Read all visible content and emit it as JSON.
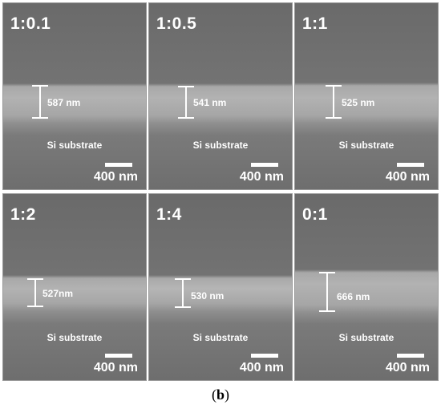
{
  "panels": [
    {
      "ratio": "1:0.1",
      "thickness": "587 nm",
      "substrate": "Si substrate",
      "scale": "400 nm"
    },
    {
      "ratio": "1:0.5",
      "thickness": "541 nm",
      "substrate": "Si substrate",
      "scale": "400 nm"
    },
    {
      "ratio": "1:1",
      "thickness": "525 nm",
      "substrate": "Si substrate",
      "scale": "400 nm"
    },
    {
      "ratio": "1:2",
      "thickness": "527nm",
      "substrate": "Si substrate",
      "scale": "400 nm"
    },
    {
      "ratio": "1:4",
      "thickness": "530 nm",
      "substrate": "Si substrate",
      "scale": "400 nm"
    },
    {
      "ratio": "0:1",
      "thickness": "666 nm",
      "substrate": "Si substrate",
      "scale": "400 nm"
    }
  ],
  "caption": {
    "open": "(",
    "letter": "b",
    "close": ")"
  }
}
